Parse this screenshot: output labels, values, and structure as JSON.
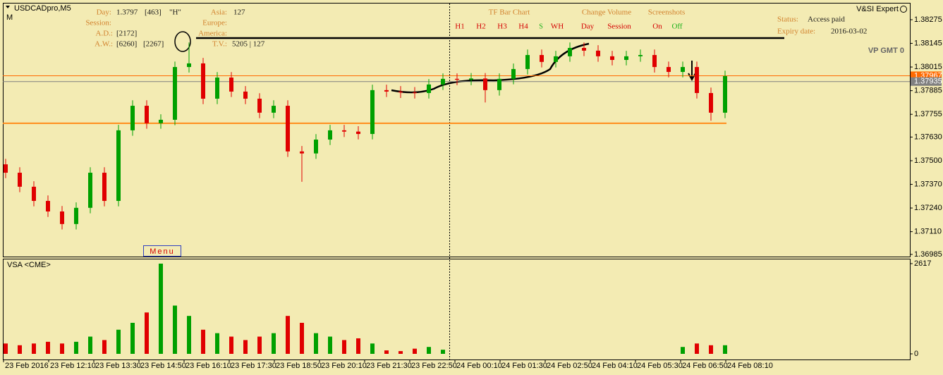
{
  "chart_data": {
    "type": "candlestick",
    "title": "USDCADpro,M5",
    "subtitle": "M",
    "open": [
      1.3748,
      1.37434,
      1.37357,
      1.37279,
      1.37221,
      1.37152,
      1.37241,
      1.37434,
      1.37279,
      1.37667,
      1.37802,
      1.37706,
      1.37725,
      1.38015,
      1.38035,
      1.37841,
      1.37957,
      1.3788,
      1.37841,
      1.37764,
      1.37802,
      1.37551,
      1.3754,
      1.37616,
      1.37667,
      1.3766,
      1.37647,
      1.37888,
      1.3788,
      1.37875,
      1.37872,
      1.37919,
      1.3795,
      1.37945,
      1.37952,
      1.37888,
      1.3795,
      1.38004,
      1.38081,
      1.38043,
      1.38074,
      1.3812,
      1.38105,
      1.38074,
      1.38054,
      1.38074,
      1.38081,
      1.38015,
      1.37988,
      1.38015,
      1.37872,
      1.37764
    ],
    "high": [
      1.3751,
      1.37464,
      1.37387,
      1.37309,
      1.37251,
      1.37271,
      1.37464,
      1.37464,
      1.37697,
      1.37832,
      1.37832,
      1.37755,
      1.38045,
      1.3815,
      1.38065,
      1.37987,
      1.37987,
      1.3791,
      1.37871,
      1.37832,
      1.37832,
      1.37581,
      1.37646,
      1.37697,
      1.37697,
      1.3769,
      1.37918,
      1.37918,
      1.3791,
      1.37905,
      1.37949,
      1.3798,
      1.3798,
      1.37982,
      1.37982,
      1.3798,
      1.38034,
      1.38111,
      1.38111,
      1.38104,
      1.3815,
      1.3815,
      1.38135,
      1.38104,
      1.38104,
      1.38111,
      1.38111,
      1.38045,
      1.38045,
      1.38045,
      1.37902,
      1.37995
    ],
    "low": [
      1.37404,
      1.37327,
      1.37249,
      1.37191,
      1.37122,
      1.37122,
      1.37211,
      1.37249,
      1.37249,
      1.37637,
      1.37676,
      1.37676,
      1.37695,
      1.37985,
      1.37811,
      1.37811,
      1.3785,
      1.37811,
      1.37734,
      1.37734,
      1.37521,
      1.37384,
      1.3751,
      1.37586,
      1.3763,
      1.37617,
      1.37617,
      1.3785,
      1.37845,
      1.37842,
      1.37842,
      1.37889,
      1.37915,
      1.37915,
      1.3782,
      1.37858,
      1.3792,
      1.37974,
      1.38013,
      1.38013,
      1.38044,
      1.38075,
      1.38044,
      1.38024,
      1.38024,
      1.38044,
      1.37985,
      1.37958,
      1.37958,
      1.37842,
      1.3772,
      1.37734
    ],
    "close": [
      1.37434,
      1.37357,
      1.37279,
      1.37221,
      1.37152,
      1.37241,
      1.37434,
      1.37279,
      1.37667,
      1.37802,
      1.37706,
      1.37725,
      1.38015,
      1.38035,
      1.37841,
      1.37957,
      1.3788,
      1.37841,
      1.37764,
      1.37802,
      1.37551,
      1.3754,
      1.37616,
      1.37667,
      1.3766,
      1.37647,
      1.37888,
      1.3788,
      1.37875,
      1.37872,
      1.37919,
      1.3795,
      1.37945,
      1.37952,
      1.37888,
      1.3795,
      1.38004,
      1.38081,
      1.38043,
      1.38074,
      1.3812,
      1.38105,
      1.38074,
      1.38054,
      1.38074,
      1.38081,
      1.38015,
      1.37988,
      1.38015,
      1.37872,
      1.37764,
      1.37965
    ],
    "up_color": "#00a000",
    "down_color": "#e00000",
    "ylim": [
      1.36973,
      1.38364
    ],
    "yticks": [
      1.38275,
      1.38145,
      1.38015,
      1.37885,
      1.37755,
      {
        "value": 1.3763,
        "label": "1.37630"
      },
      {
        "value": 1.375,
        "label": "1.37500"
      },
      {
        "value": 1.3737,
        "label": "1.37370"
      },
      {
        "value": 1.3724,
        "label": "1.37240"
      },
      {
        "value": 1.3711,
        "label": "1.37110"
      },
      1.36985
    ],
    "grid": false,
    "price_lines": [
      {
        "value": 1.37967,
        "color": "#ff6a00"
      },
      {
        "value": 1.37935,
        "color": "#808080"
      }
    ],
    "support_level": 1.37706,
    "x_labels": [
      "23 Feb 2016",
      "23 Feb 12:10",
      "23 Feb 13:30",
      "23 Feb 14:50",
      "23 Feb 16:10",
      "23 Feb 17:30",
      "23 Feb 18:50",
      "23 Feb 20:10",
      "23 Feb 21:30",
      "23 Feb 22:50",
      "24 Feb 00:10",
      "24 Feb 01:30",
      "24 Feb 02:50",
      "24 Feb 04:10",
      "24 Feb 05:30",
      "24 Feb 06:50",
      "24 Feb 08:10"
    ],
    "volume": {
      "title": "VSA <CME>",
      "ylim": [
        0,
        2617
      ],
      "yticks": [
        2617,
        0
      ],
      "values": [
        300,
        250,
        300,
        350,
        300,
        350,
        500,
        400,
        700,
        900,
        1200,
        2617,
        1400,
        1100,
        700,
        600,
        500,
        400,
        500,
        600,
        1100,
        900,
        600,
        500,
        400,
        450,
        300,
        100,
        80,
        150,
        200,
        120,
        0,
        0,
        0,
        0,
        0,
        0,
        0,
        0,
        0,
        0,
        0,
        0,
        0,
        0,
        0,
        0,
        200,
        300,
        250,
        250
      ]
    }
  },
  "panel": {
    "day_label": "Day:",
    "day_value": "1.3797",
    "day_count": "[463]",
    "day_flag": "\"H\"",
    "session_label": "Session:",
    "ad_label": "A.D.:",
    "ad_value": "[2172]",
    "aw_label": "A.W.:",
    "aw_value1": "[6260]",
    "aw_value2": "[2267]",
    "asia_label": "Asia:",
    "asia_value": "127",
    "europe_label": "Europe:",
    "america_label": "America:",
    "tv_label": "T.V.:",
    "tv_value": "5205 | 127"
  },
  "toolbar": {
    "tf_title": "TF Bar Chart",
    "tf_buttons": [
      "H1",
      "H2",
      "H3",
      "H4",
      "S",
      "WH"
    ],
    "volume_title": "Change Volume",
    "volume_buttons": [
      "Day",
      "Session"
    ],
    "shots_title": "Screenshots",
    "shots_on": "On",
    "shots_off": "Off"
  },
  "expert": {
    "name": "V&SI Expert",
    "status_label": "Status:",
    "status_value": "Access paid",
    "expiry_label": "Expiry date:",
    "expiry_value": "2016-03-02",
    "vp": "VP GMT 0"
  },
  "menu": "Menu"
}
